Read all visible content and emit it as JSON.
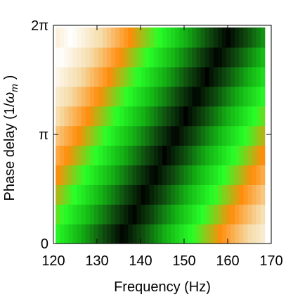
{
  "chart_data": {
    "type": "heatmap",
    "xlabel": "Frequency (Hz)",
    "ylabel_prefix": "Phase delay (1/",
    "ylabel_omega": "ω",
    "ylabel_sub": "m",
    "ylabel_suffix": ")",
    "x_ticks": [
      {
        "value": 120,
        "label": "120"
      },
      {
        "value": 130,
        "label": "130"
      },
      {
        "value": 140,
        "label": "140"
      },
      {
        "value": 150,
        "label": "150"
      },
      {
        "value": 160,
        "label": "160"
      },
      {
        "value": 170,
        "label": "170"
      }
    ],
    "y_ticks": [
      {
        "value": 0,
        "label": "0"
      },
      {
        "value": 0.5,
        "label": "π"
      },
      {
        "value": 1,
        "label": "2π"
      }
    ],
    "xlim": [
      120,
      170
    ],
    "x_data_range": [
      120.5,
      168.5
    ],
    "ylim": [
      0,
      1
    ],
    "y_data_range": [
      0,
      0.99
    ],
    "rows": 11,
    "cols": 49,
    "color_scale": "black-green-orange-cream-white",
    "colormap": [
      "#000000",
      "#0f4a0f",
      "#14b414",
      "#28ff28",
      "#ff8c0a",
      "#f5dcaa",
      "#ffffff"
    ],
    "phase_shift_hz_per_row": 2.4,
    "peak_row0_hz": 136,
    "peak_width_hz": 6
  }
}
